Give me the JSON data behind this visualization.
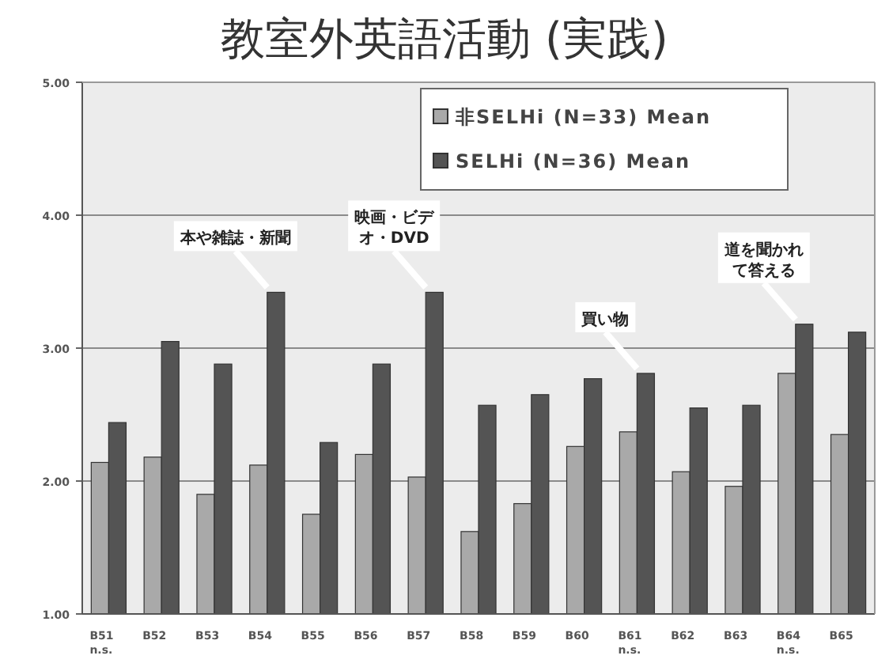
{
  "chart_data": {
    "type": "bar",
    "title": "教室外英語活動 (実践)",
    "categories": [
      "B51\nn.s.",
      "B52",
      "B53",
      "B54",
      "B55",
      "B56",
      "B57",
      "B58",
      "B59",
      "B60",
      "B61\nn.s.",
      "B62",
      "B63",
      "B64\nn.s.",
      "B65"
    ],
    "series": [
      {
        "name": "非SELHi (N=33) Mean",
        "color": "#a9a9a9",
        "values": [
          2.14,
          2.18,
          1.9,
          2.12,
          1.75,
          2.2,
          2.03,
          1.62,
          1.83,
          2.26,
          2.37,
          2.07,
          1.96,
          2.81,
          2.35
        ]
      },
      {
        "name": "SELHi (N=36) Mean",
        "color": "#545454",
        "values": [
          2.44,
          3.05,
          2.88,
          3.42,
          2.29,
          2.88,
          3.42,
          2.57,
          2.65,
          2.77,
          2.81,
          2.55,
          2.57,
          3.18,
          3.12
        ]
      }
    ],
    "ylim": [
      1,
      5
    ],
    "yticks": [
      {
        "value": 1,
        "label": "1.00"
      },
      {
        "value": 2,
        "label": "2.00"
      },
      {
        "value": 3,
        "label": "3.00"
      },
      {
        "value": 4,
        "label": "4.00"
      },
      {
        "value": 5,
        "label": "5.00"
      }
    ],
    "grid": "y",
    "legend": "top right",
    "annotations": [
      {
        "text": "本や雑誌・新聞",
        "x": "B54",
        "y": 3.42
      },
      {
        "text": "映画・ビデオ・DVD",
        "x": "B57",
        "y": 3.42
      },
      {
        "text": "買い物",
        "x": "B61\nn.s.",
        "y": 2.81
      },
      {
        "text": "道を聞かれて答える",
        "x": "B64\nn.s.",
        "y": 3.18
      }
    ]
  }
}
